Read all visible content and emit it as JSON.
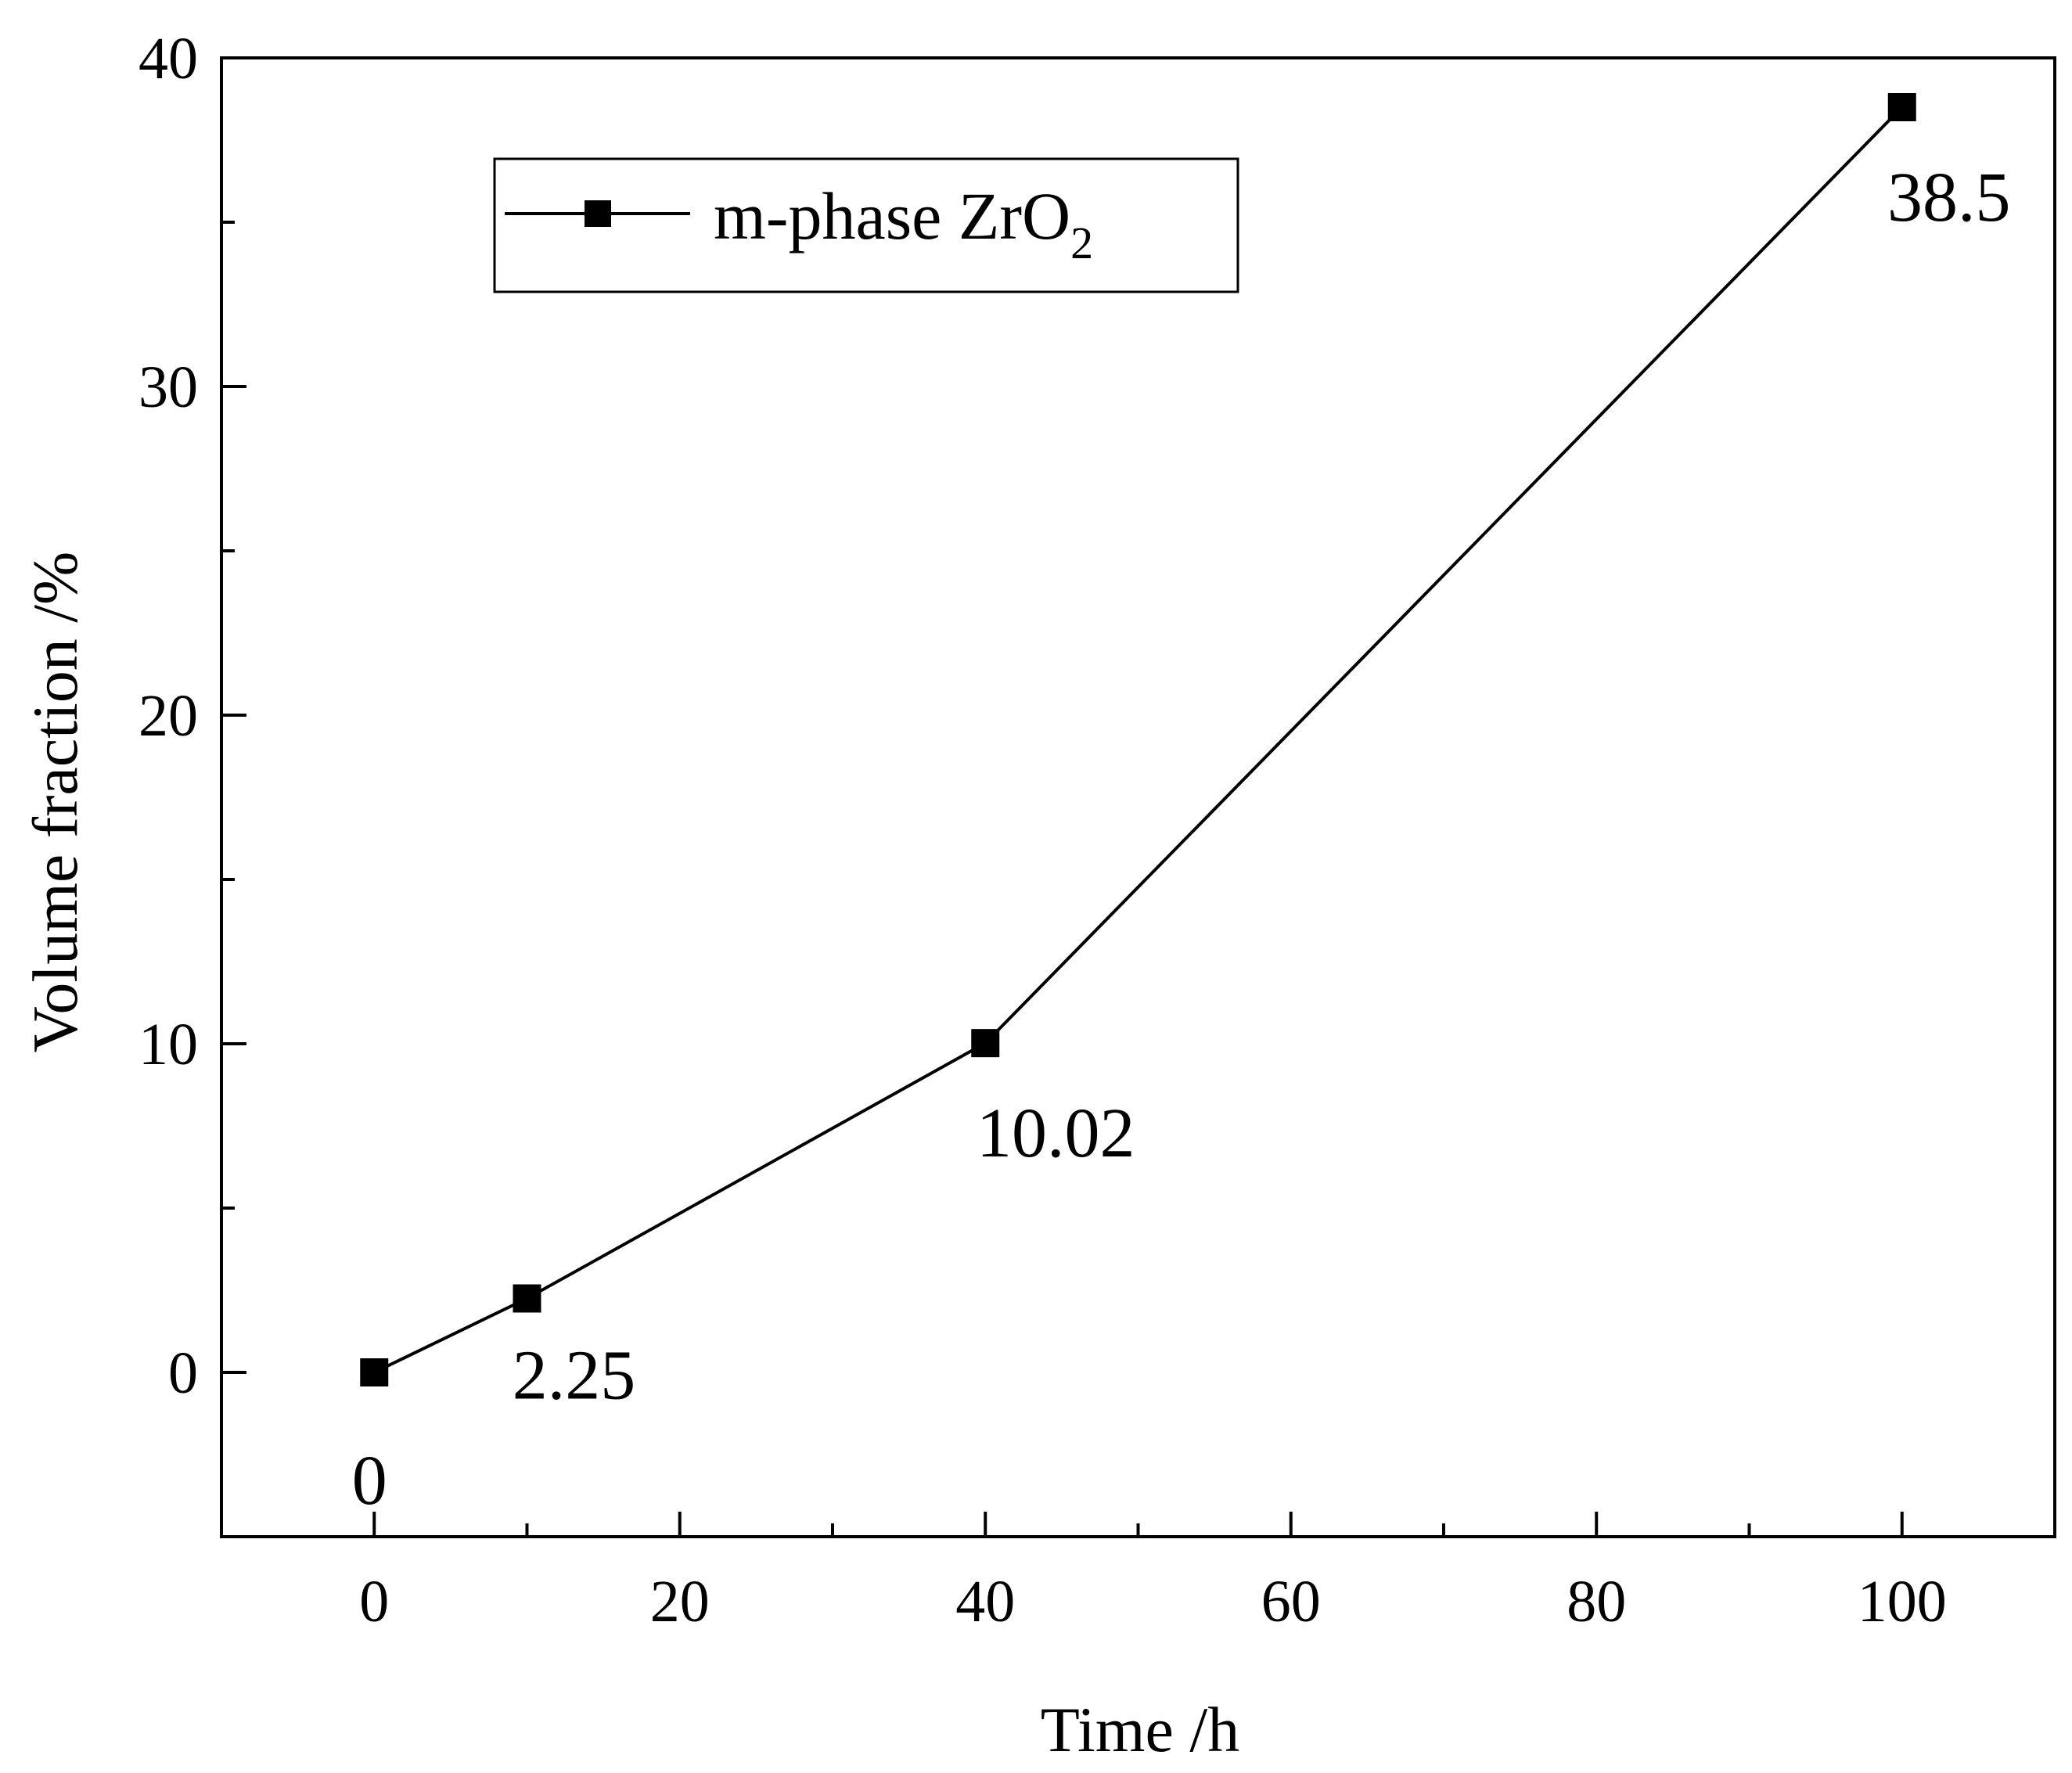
{
  "chart_data": {
    "type": "line",
    "title": "",
    "xlabel": "Time /h",
    "ylabel": "Volume fraction /%",
    "xlim": [
      -10,
      110
    ],
    "ylim": [
      -5,
      40
    ],
    "xticks": [
      0,
      20,
      40,
      60,
      80,
      100
    ],
    "xminor": [
      10,
      30,
      50,
      70,
      90
    ],
    "yticks": [
      0,
      10,
      20,
      30,
      40
    ],
    "yminor": [
      5,
      15,
      25,
      35
    ],
    "grid": false,
    "legend_position": "top-left",
    "series": [
      {
        "name": "m-phase ZrO2",
        "legend_main": "m-phase ZrO",
        "legend_sub": "2",
        "marker": "square",
        "color": "#000000",
        "x": [
          0,
          10,
          40,
          100
        ],
        "y": [
          0,
          2.25,
          10.02,
          38.5
        ],
        "labels": [
          "0",
          "2.25",
          "10.02",
          "38.5"
        ]
      }
    ]
  }
}
